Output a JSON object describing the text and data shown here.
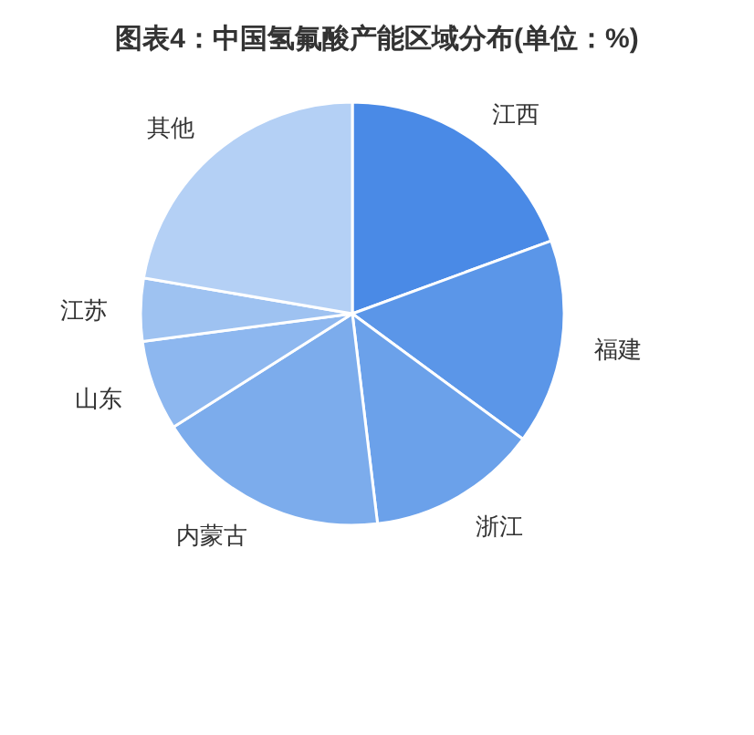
{
  "chart_data": {
    "type": "pie",
    "title": "图表4：中国氢氟酸产能区域分布(单位：%)",
    "categories": [
      "江西",
      "福建",
      "浙江",
      "内蒙古",
      "山东",
      "江苏",
      "其他"
    ],
    "values": [
      19.4,
      15.7,
      13,
      17.9,
      6.9,
      4.8,
      22.3
    ],
    "colors": [
      "#4a8ae6",
      "#5b96e8",
      "#6ba1ea",
      "#7cacec",
      "#8db7ef",
      "#9ec2f1",
      "#b4d0f5"
    ]
  }
}
